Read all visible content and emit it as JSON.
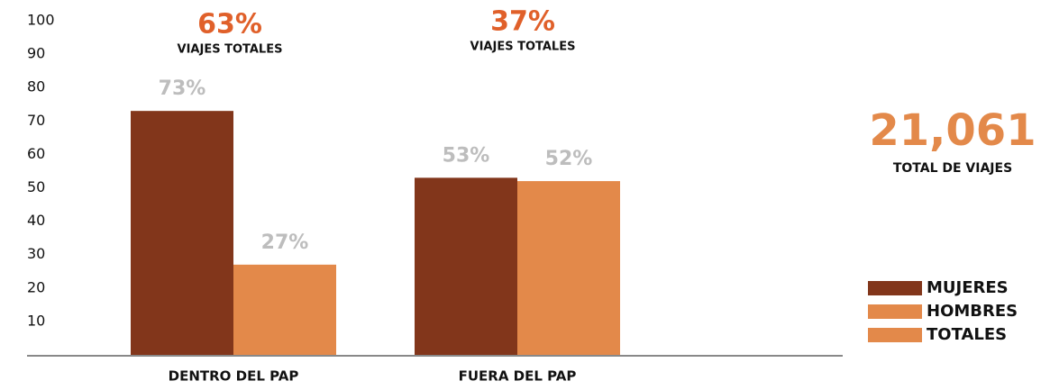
{
  "chart_data": {
    "type": "bar",
    "categories": [
      "DENTRO DEL PAP",
      "FUERA DEL PAP"
    ],
    "series": [
      {
        "name": "MUJERES",
        "color": "#82361b",
        "values": [
          73,
          53
        ],
        "value_labels": [
          "73%",
          "53%"
        ]
      },
      {
        "name": "HOMBRES",
        "color": "#e3894a",
        "values": [
          27,
          52
        ],
        "value_labels": [
          "27%",
          "52%"
        ]
      },
      {
        "name": "TOTALES",
        "color": "#e3894a",
        "values": [
          null,
          null
        ]
      }
    ],
    "group_annotations": [
      {
        "label": "63%",
        "text": "VIAJES TOTALES"
      },
      {
        "label": "37%",
        "text": "VIAJES TOTALES"
      }
    ],
    "total": {
      "label": "21,061",
      "text": "TOTAL DE VIAJES"
    },
    "ylim": [
      0,
      100
    ],
    "yticks": [
      10,
      20,
      30,
      40,
      50,
      60,
      70,
      80,
      90,
      100
    ],
    "grid": false,
    "legend": "right"
  }
}
